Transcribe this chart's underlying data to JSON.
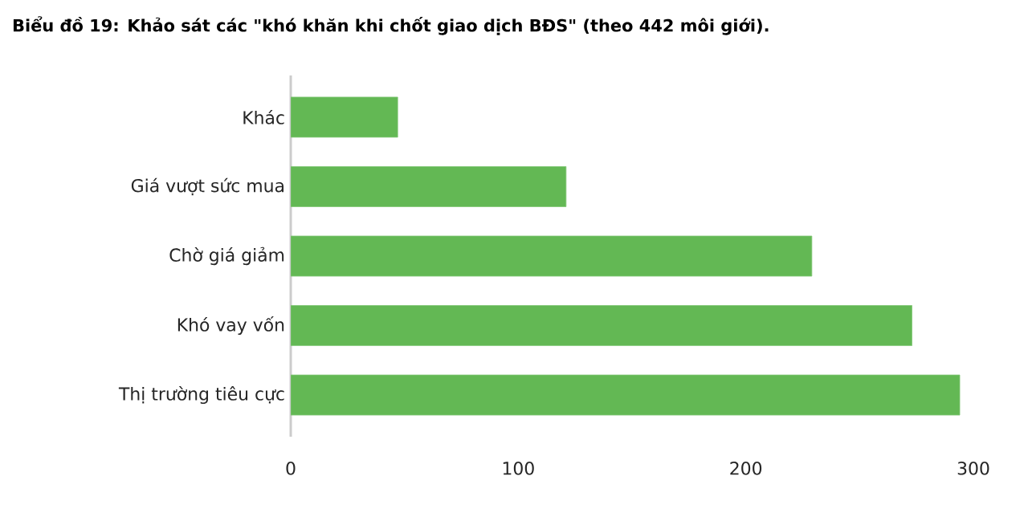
{
  "chart_data": {
    "type": "bar",
    "orientation": "horizontal",
    "title": "Biểu đồ 19: Khảo sát các \"khó khăn khi chốt giao dịch BĐS\" (theo 442 môi giới).",
    "categories": [
      "Khác",
      "Giá vượt sức mua",
      "Chờ giá giảm",
      "Khó vay vốn",
      "Thị trường tiêu cực"
    ],
    "values": [
      47,
      121,
      229,
      273,
      294
    ],
    "color": "#63b854",
    "xlim": [
      0,
      300
    ],
    "xticks": [
      0,
      100,
      200,
      300
    ]
  }
}
